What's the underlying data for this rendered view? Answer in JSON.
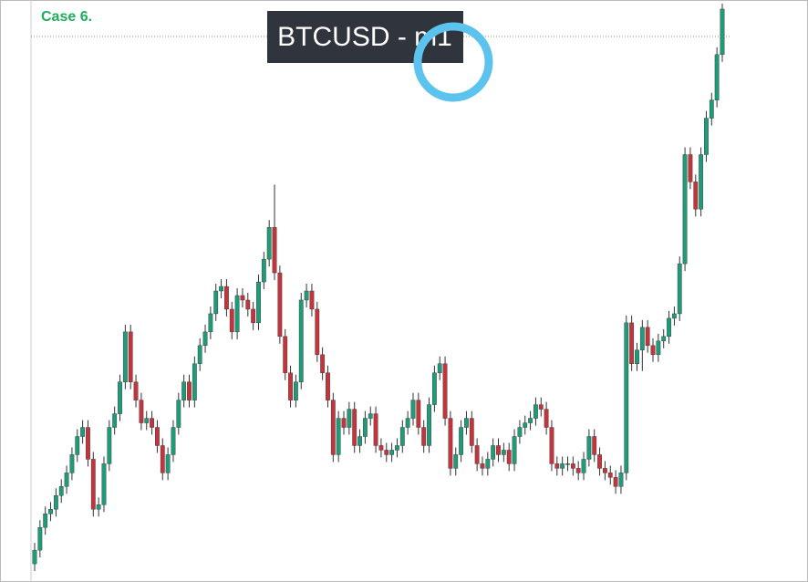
{
  "chart_data": {
    "type": "candlestick",
    "label": "Case 6.",
    "title": "BTCUSD - m1",
    "up_color": "#1f9b79",
    "down_color": "#c4343c",
    "ylim": [
      0,
      640
    ],
    "open": [
      20,
      35,
      60,
      75,
      80,
      95,
      105,
      120,
      140,
      160,
      170,
      135,
      80,
      85,
      130,
      170,
      185,
      220,
      275,
      220,
      200,
      175,
      180,
      170,
      150,
      120,
      140,
      170,
      200,
      220,
      200,
      240,
      260,
      275,
      295,
      320,
      325,
      300,
      275,
      315,
      310,
      300,
      285,
      330,
      355,
      390,
      340,
      270,
      230,
      200,
      220,
      310,
      320,
      300,
      250,
      230,
      200,
      140,
      180,
      170,
      190,
      150,
      160,
      180,
      185,
      150,
      145,
      140,
      145,
      150,
      170,
      180,
      200,
      170,
      150,
      195,
      230,
      240,
      180,
      125,
      140,
      170,
      180,
      150,
      130,
      125,
      135,
      150,
      140,
      145,
      130,
      160,
      170,
      175,
      180,
      195,
      190,
      170,
      130,
      125,
      130,
      130,
      125,
      120,
      135,
      160,
      140,
      125,
      120,
      115,
      105,
      120,
      285,
      240,
      255,
      280,
      260,
      250,
      265,
      270,
      290,
      295,
      350,
      470,
      440,
      410,
      470,
      510,
      530,
      580
    ],
    "high": [
      43,
      68,
      83,
      88,
      103,
      113,
      128,
      148,
      168,
      178,
      178,
      143,
      93,
      138,
      178,
      193,
      228,
      283,
      283,
      228,
      208,
      188,
      188,
      178,
      158,
      148,
      178,
      208,
      228,
      228,
      248,
      268,
      283,
      303,
      328,
      333,
      333,
      308,
      323,
      323,
      318,
      308,
      338,
      363,
      398,
      437,
      348,
      278,
      238,
      228,
      318,
      328,
      328,
      308,
      258,
      238,
      208,
      188,
      188,
      198,
      198,
      168,
      188,
      193,
      193,
      158,
      153,
      153,
      158,
      178,
      188,
      208,
      208,
      178,
      203,
      238,
      248,
      248,
      188,
      148,
      178,
      188,
      188,
      158,
      138,
      143,
      158,
      158,
      153,
      153,
      168,
      178,
      183,
      188,
      203,
      203,
      198,
      178,
      138,
      138,
      138,
      138,
      133,
      143,
      168,
      168,
      148,
      133,
      128,
      123,
      128,
      293,
      293,
      263,
      288,
      288,
      268,
      273,
      278,
      298,
      303,
      358,
      478,
      478,
      448,
      478,
      518,
      538,
      588,
      636
    ],
    "low": [
      12,
      27,
      52,
      67,
      72,
      87,
      97,
      112,
      132,
      152,
      127,
      72,
      72,
      77,
      122,
      162,
      177,
      212,
      212,
      192,
      167,
      167,
      162,
      142,
      112,
      112,
      132,
      162,
      192,
      192,
      192,
      232,
      252,
      267,
      287,
      312,
      292,
      267,
      267,
      302,
      292,
      277,
      277,
      322,
      347,
      332,
      262,
      222,
      192,
      192,
      212,
      302,
      292,
      242,
      222,
      192,
      132,
      132,
      162,
      162,
      142,
      142,
      152,
      172,
      142,
      137,
      132,
      132,
      137,
      142,
      162,
      172,
      162,
      142,
      142,
      187,
      222,
      172,
      117,
      117,
      132,
      162,
      142,
      122,
      117,
      117,
      127,
      132,
      132,
      122,
      122,
      152,
      162,
      167,
      172,
      182,
      162,
      122,
      117,
      117,
      122,
      117,
      112,
      112,
      127,
      132,
      117,
      112,
      107,
      97,
      97,
      112,
      232,
      232,
      232,
      252,
      242,
      242,
      257,
      262,
      282,
      287,
      342,
      432,
      402,
      402,
      462,
      502,
      522,
      572
    ],
    "close": [
      35,
      60,
      75,
      80,
      95,
      105,
      120,
      140,
      160,
      170,
      135,
      80,
      85,
      130,
      170,
      185,
      220,
      275,
      220,
      200,
      175,
      180,
      170,
      150,
      120,
      140,
      170,
      200,
      220,
      200,
      240,
      260,
      275,
      295,
      320,
      325,
      300,
      275,
      315,
      310,
      300,
      285,
      330,
      355,
      390,
      340,
      270,
      230,
      200,
      220,
      310,
      320,
      300,
      250,
      230,
      200,
      140,
      180,
      170,
      190,
      150,
      160,
      180,
      185,
      150,
      145,
      140,
      145,
      150,
      170,
      180,
      200,
      170,
      150,
      195,
      230,
      240,
      180,
      125,
      140,
      170,
      180,
      150,
      130,
      125,
      135,
      150,
      140,
      145,
      130,
      160,
      170,
      175,
      180,
      195,
      190,
      170,
      130,
      125,
      130,
      130,
      125,
      120,
      135,
      160,
      140,
      125,
      120,
      115,
      105,
      120,
      285,
      240,
      255,
      280,
      260,
      250,
      265,
      270,
      290,
      295,
      350,
      470,
      440,
      410,
      470,
      510,
      530,
      580,
      630
    ]
  }
}
